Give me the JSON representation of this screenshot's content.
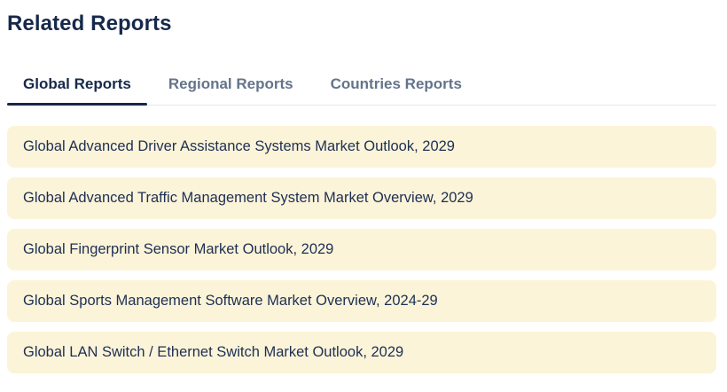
{
  "page": {
    "title": "Related Reports"
  },
  "tabs": [
    {
      "label": "Global Reports",
      "active": true
    },
    {
      "label": "Regional Reports",
      "active": false
    },
    {
      "label": "Countries Reports",
      "active": false
    }
  ],
  "reports": {
    "items": [
      {
        "title": "Global Advanced Driver Assistance Systems Market Outlook, 2029"
      },
      {
        "title": "Global Advanced Traffic Management System Market Overview, 2029"
      },
      {
        "title": "Global Fingerprint Sensor Market Outlook, 2029"
      },
      {
        "title": "Global Sports Management Software Market Overview, 2024-29"
      },
      {
        "title": "Global LAN Switch / Ethernet Switch Market Outlook, 2029"
      }
    ]
  },
  "colors": {
    "navy": "#16294a",
    "item_text": "#1d2f55",
    "inactive_tab": "#64748b",
    "row_background": "#fcf4d8",
    "tab_divider": "#e4e7ec"
  }
}
